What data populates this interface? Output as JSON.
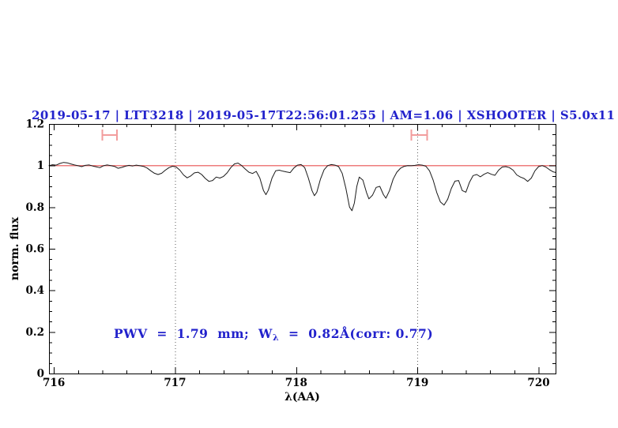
{
  "colors": {
    "title_blue": "#2222cc",
    "annotation_blue": "#2222cc",
    "continuum_red": "#ee7c7c",
    "marker_red": "#f29d9d",
    "spectrum_black": "#1a1a1a",
    "dotted_gray": "#5a5a5a",
    "frame_black": "#000000",
    "background": "#ffffff"
  },
  "chart_data": {
    "type": "line",
    "title": "2019-05-17 | LTT3218 | 2019-05-17T22:56:01.255 | AM=1.06 | XSHOOTER | S5.0x11",
    "xlabel": "λ(AA)",
    "ylabel": "norm. flux",
    "xlim": [
      715.96,
      720.14
    ],
    "ylim": [
      0,
      1.2
    ],
    "x_major_ticks": [
      716,
      717,
      718,
      719,
      720
    ],
    "x_tick_labels": [
      "716",
      "717",
      "718",
      "719",
      "720"
    ],
    "x_minor_step": 0.2,
    "y_major_ticks": [
      0,
      0.2,
      0.4,
      0.6,
      0.8,
      1,
      1.2
    ],
    "y_tick_labels": [
      "0",
      "0.2",
      "0.4",
      "0.6",
      "0.8",
      "1",
      "1.2"
    ],
    "y_minor_step": 0.05,
    "grid": "off",
    "legend": "none",
    "dotted_vlines": [
      717.0,
      719.0
    ],
    "continuum_line_y": 1.0,
    "band_markers": [
      {
        "x_from": 716.4,
        "x_to": 716.52,
        "y": 1.147,
        "cap_halfheight_flux": 0.027
      },
      {
        "x_from": 718.95,
        "x_to": 719.08,
        "y": 1.147,
        "cap_halfheight_flux": 0.027
      }
    ],
    "annotation": {
      "pre": "PWV  =  1.79  mm;  W",
      "sub": "λ",
      "post": "  =  0.82Å(corr: 0.77)",
      "x": 716.5,
      "y": 0.19
    },
    "series": [
      {
        "name": "normalized-spectrum",
        "points": [
          [
            715.96,
            1.0
          ],
          [
            715.99,
            1.004
          ],
          [
            716.02,
            1.002
          ],
          [
            716.05,
            1.01
          ],
          [
            716.08,
            1.015
          ],
          [
            716.11,
            1.013
          ],
          [
            716.14,
            1.008
          ],
          [
            716.17,
            1.003
          ],
          [
            716.2,
            0.999
          ],
          [
            716.23,
            0.995
          ],
          [
            716.26,
            1.001
          ],
          [
            716.29,
            1.003
          ],
          [
            716.32,
            0.998
          ],
          [
            716.35,
            0.994
          ],
          [
            716.38,
            0.99
          ],
          [
            716.41,
            0.999
          ],
          [
            716.44,
            1.003
          ],
          [
            716.47,
            1.0
          ],
          [
            716.5,
            0.996
          ],
          [
            716.53,
            0.987
          ],
          [
            716.56,
            0.991
          ],
          [
            716.59,
            0.997
          ],
          [
            716.62,
            1.001
          ],
          [
            716.65,
            0.998
          ],
          [
            716.68,
            1.002
          ],
          [
            716.71,
            0.999
          ],
          [
            716.74,
            0.996
          ],
          [
            716.77,
            0.988
          ],
          [
            716.8,
            0.975
          ],
          [
            716.83,
            0.963
          ],
          [
            716.86,
            0.957
          ],
          [
            716.89,
            0.963
          ],
          [
            716.92,
            0.978
          ],
          [
            716.95,
            0.99
          ],
          [
            716.98,
            0.997
          ],
          [
            717.01,
            0.993
          ],
          [
            717.04,
            0.978
          ],
          [
            717.07,
            0.955
          ],
          [
            717.1,
            0.941
          ],
          [
            717.13,
            0.95
          ],
          [
            717.16,
            0.965
          ],
          [
            717.19,
            0.968
          ],
          [
            717.22,
            0.957
          ],
          [
            717.25,
            0.938
          ],
          [
            717.28,
            0.924
          ],
          [
            717.31,
            0.928
          ],
          [
            717.34,
            0.945
          ],
          [
            717.37,
            0.94
          ],
          [
            717.4,
            0.948
          ],
          [
            717.43,
            0.965
          ],
          [
            717.46,
            0.99
          ],
          [
            717.49,
            1.008
          ],
          [
            717.52,
            1.012
          ],
          [
            717.55,
            1.0
          ],
          [
            717.58,
            0.983
          ],
          [
            717.61,
            0.968
          ],
          [
            717.64,
            0.962
          ],
          [
            717.67,
            0.972
          ],
          [
            717.7,
            0.94
          ],
          [
            717.73,
            0.88
          ],
          [
            717.75,
            0.86
          ],
          [
            717.77,
            0.882
          ],
          [
            717.8,
            0.94
          ],
          [
            717.83,
            0.975
          ],
          [
            717.86,
            0.978
          ],
          [
            717.89,
            0.973
          ],
          [
            717.92,
            0.969
          ],
          [
            717.95,
            0.966
          ],
          [
            717.98,
            0.988
          ],
          [
            718.01,
            1.002
          ],
          [
            718.04,
            1.005
          ],
          [
            718.07,
            0.99
          ],
          [
            718.1,
            0.94
          ],
          [
            718.13,
            0.88
          ],
          [
            718.15,
            0.855
          ],
          [
            718.17,
            0.872
          ],
          [
            718.2,
            0.935
          ],
          [
            718.23,
            0.98
          ],
          [
            718.26,
            1.0
          ],
          [
            718.29,
            1.005
          ],
          [
            718.32,
            1.002
          ],
          [
            718.35,
            0.995
          ],
          [
            718.38,
            0.962
          ],
          [
            718.41,
            0.89
          ],
          [
            718.44,
            0.8
          ],
          [
            718.46,
            0.783
          ],
          [
            718.48,
            0.82
          ],
          [
            718.5,
            0.9
          ],
          [
            718.52,
            0.945
          ],
          [
            718.55,
            0.93
          ],
          [
            718.58,
            0.87
          ],
          [
            718.6,
            0.84
          ],
          [
            718.63,
            0.858
          ],
          [
            718.66,
            0.895
          ],
          [
            718.69,
            0.9
          ],
          [
            718.72,
            0.86
          ],
          [
            718.74,
            0.843
          ],
          [
            718.77,
            0.88
          ],
          [
            718.8,
            0.935
          ],
          [
            718.83,
            0.968
          ],
          [
            718.86,
            0.987
          ],
          [
            718.89,
            0.996
          ],
          [
            718.92,
            1.0
          ],
          [
            718.95,
            0.999
          ],
          [
            718.98,
            1.001
          ],
          [
            719.01,
            1.004
          ],
          [
            719.04,
            1.002
          ],
          [
            719.07,
            0.997
          ],
          [
            719.1,
            0.975
          ],
          [
            719.13,
            0.93
          ],
          [
            719.16,
            0.87
          ],
          [
            719.19,
            0.825
          ],
          [
            719.22,
            0.81
          ],
          [
            719.25,
            0.838
          ],
          [
            719.28,
            0.89
          ],
          [
            719.31,
            0.925
          ],
          [
            719.34,
            0.928
          ],
          [
            719.37,
            0.88
          ],
          [
            719.4,
            0.872
          ],
          [
            719.43,
            0.92
          ],
          [
            719.46,
            0.952
          ],
          [
            719.49,
            0.957
          ],
          [
            719.52,
            0.946
          ],
          [
            719.55,
            0.958
          ],
          [
            719.58,
            0.966
          ],
          [
            719.61,
            0.958
          ],
          [
            719.64,
            0.953
          ],
          [
            719.67,
            0.978
          ],
          [
            719.7,
            0.993
          ],
          [
            719.73,
            0.995
          ],
          [
            719.76,
            0.99
          ],
          [
            719.79,
            0.978
          ],
          [
            719.82,
            0.955
          ],
          [
            719.85,
            0.945
          ],
          [
            719.88,
            0.938
          ],
          [
            719.91,
            0.924
          ],
          [
            719.94,
            0.94
          ],
          [
            719.97,
            0.975
          ],
          [
            720.0,
            0.995
          ],
          [
            720.03,
            1.0
          ],
          [
            720.06,
            0.993
          ],
          [
            720.09,
            0.98
          ],
          [
            720.12,
            0.97
          ],
          [
            720.14,
            0.967
          ]
        ]
      }
    ]
  }
}
